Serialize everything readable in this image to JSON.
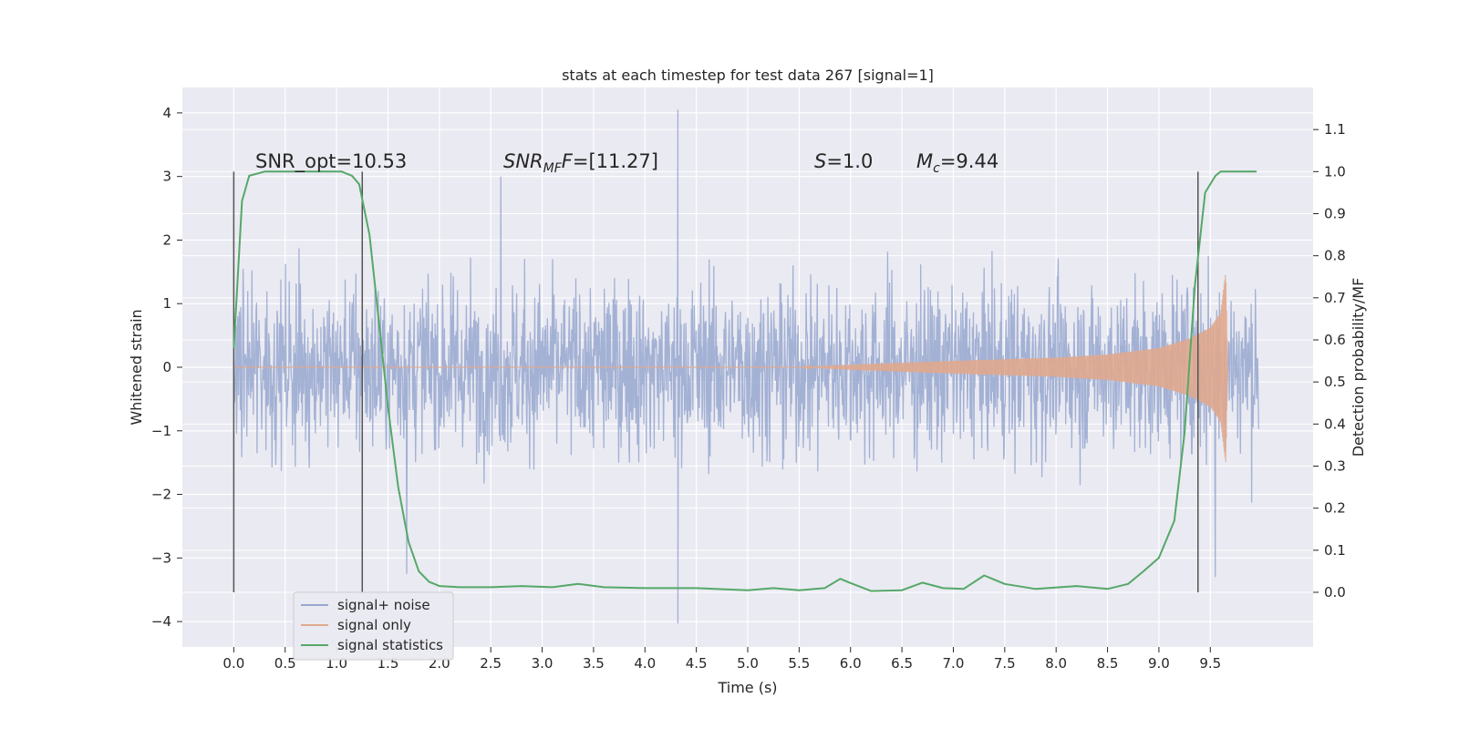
{
  "chart_data": {
    "type": "line",
    "title": "stats at each timestep for test data 267 [signal=1]",
    "xlabel": "Time (s)",
    "ylabel_left": "Whitened strain",
    "ylabel_right": "Detection probability/MF",
    "xlim": [
      -0.5,
      10.5
    ],
    "ylim_left": [
      -4.4,
      4.4
    ],
    "ylim_right": [
      -0.13,
      1.2
    ],
    "x_ticks": [
      "0.0",
      "0.5",
      "1.0",
      "1.5",
      "2.0",
      "2.5",
      "3.0",
      "3.5",
      "4.0",
      "4.5",
      "5.0",
      "5.5",
      "6.0",
      "6.5",
      "7.0",
      "7.5",
      "8.0",
      "8.5",
      "9.0",
      "9.5"
    ],
    "y_ticks_left": [
      "4",
      "3",
      "2",
      "1",
      "0",
      "−1",
      "−2",
      "−3",
      "−4"
    ],
    "y_ticks_right": [
      "1.1",
      "1.0",
      "0.9",
      "0.8",
      "0.7",
      "0.6",
      "0.5",
      "0.4",
      "0.3",
      "0.2",
      "0.1",
      "0.0"
    ],
    "grid": true,
    "legend_position": "lower-left",
    "annotations": {
      "snr_opt": "SNR_opt=10.53",
      "snr_mf_sym": "SNR",
      "snr_mf_sub": "MF",
      "snr_mf_val": "=[11.27]",
      "s_sym": "S",
      "s_val": "=1.0",
      "mc_sym": "M",
      "mc_sub": "c",
      "mc_val": "=9.44"
    },
    "vertical_lines_x": [
      0.0,
      1.25,
      9.38
    ],
    "series": [
      {
        "name": "signal+ noise",
        "axis": "left",
        "color": "#97a7cf",
        "description": "dense noise trace between x=0 and 9.97, typical amplitude ±2, extremes -4.0 to 4.05",
        "x_range": [
          0.0,
          9.97
        ],
        "extremes": [
          [
            4.32,
            4.05
          ],
          [
            4.32,
            -4.03
          ],
          [
            2.6,
            3.0
          ],
          [
            9.55,
            -3.3
          ],
          [
            1.68,
            -3.25
          ]
        ]
      },
      {
        "name": "signal only",
        "axis": "left",
        "color": "#e0a98e",
        "description": "chirp starting near 5.5s, amplitude rising to ~1.5 at 9.65s then ending",
        "envelope": [
          [
            5.5,
            0.0
          ],
          [
            6.0,
            0.04
          ],
          [
            7.0,
            0.1
          ],
          [
            8.0,
            0.15
          ],
          [
            8.5,
            0.2
          ],
          [
            9.0,
            0.3
          ],
          [
            9.3,
            0.45
          ],
          [
            9.5,
            0.62
          ],
          [
            9.6,
            0.85
          ],
          [
            9.65,
            1.5
          ],
          [
            9.67,
            0.0
          ]
        ]
      },
      {
        "name": "signal statistics",
        "axis": "right",
        "color": "#55a868",
        "x": [
          0.0,
          0.08,
          0.15,
          0.3,
          0.5,
          0.7,
          0.9,
          1.05,
          1.15,
          1.22,
          1.32,
          1.4,
          1.5,
          1.6,
          1.7,
          1.8,
          1.9,
          2.0,
          2.2,
          2.5,
          2.8,
          3.1,
          3.35,
          3.6,
          4.0,
          4.5,
          5.0,
          5.25,
          5.5,
          5.75,
          5.9,
          6.0,
          6.2,
          6.5,
          6.7,
          6.9,
          7.1,
          7.3,
          7.5,
          7.8,
          8.2,
          8.5,
          8.7,
          8.85,
          9.0,
          9.15,
          9.25,
          9.35,
          9.45,
          9.55,
          9.6,
          9.7,
          9.8,
          9.95
        ],
        "y": [
          0.58,
          0.93,
          0.99,
          1.0,
          1.0,
          1.0,
          1.0,
          1.0,
          0.99,
          0.97,
          0.85,
          0.67,
          0.44,
          0.25,
          0.12,
          0.05,
          0.025,
          0.015,
          0.012,
          0.012,
          0.015,
          0.012,
          0.02,
          0.012,
          0.01,
          0.01,
          0.005,
          0.01,
          0.005,
          0.01,
          0.032,
          0.022,
          0.003,
          0.005,
          0.023,
          0.01,
          0.008,
          0.04,
          0.02,
          0.008,
          0.015,
          0.008,
          0.02,
          0.05,
          0.082,
          0.17,
          0.38,
          0.73,
          0.95,
          0.99,
          1.0,
          1.0,
          1.0,
          1.0
        ]
      }
    ]
  }
}
